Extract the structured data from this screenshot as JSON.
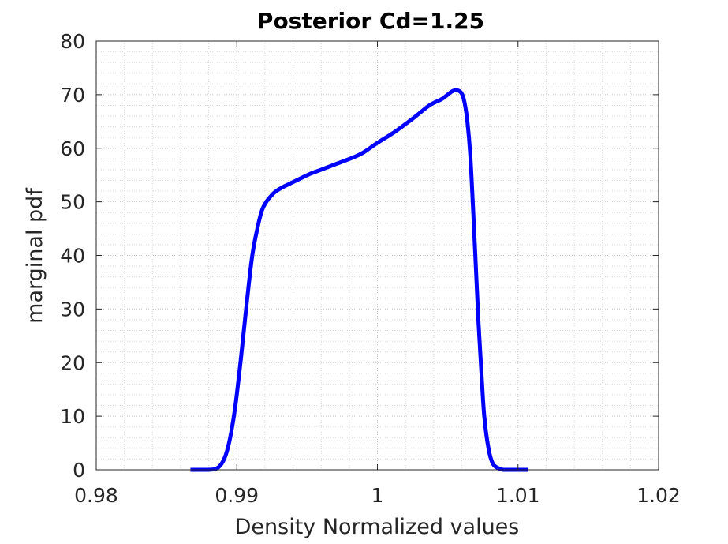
{
  "chart_data": {
    "type": "line",
    "title": "Posterior Cd=1.25",
    "xlabel": "Density Normalized values",
    "ylabel": "marginal pdf",
    "xlim": [
      0.98,
      1.02
    ],
    "ylim": [
      0,
      80
    ],
    "x_ticks": [
      0.98,
      0.99,
      1,
      1.01,
      1.02
    ],
    "x_tick_labels": [
      "0.98",
      "0.99",
      "1",
      "1.01",
      "1.02"
    ],
    "y_ticks": [
      0,
      10,
      20,
      30,
      40,
      50,
      60,
      70,
      80
    ],
    "y_tick_labels": [
      "0",
      "10",
      "20",
      "30",
      "40",
      "50",
      "60",
      "70",
      "80"
    ],
    "grid": true,
    "minor_grid": true,
    "line_color": "#0000ff",
    "series": [
      {
        "x": [
          0.9867,
          0.988,
          0.9886,
          0.989,
          0.9893,
          0.9896,
          0.9899,
          0.9903,
          0.9907,
          0.9911,
          0.9915,
          0.9918,
          0.9921,
          0.9924,
          0.9927,
          0.9931,
          0.9937,
          0.9944,
          0.9952,
          0.996,
          0.997,
          0.9982,
          0.999,
          1.0,
          1.0012,
          1.0025,
          1.0037,
          1.0046,
          1.0053,
          1.0057,
          1.006,
          1.0062,
          1.0064,
          1.0066,
          1.0068,
          1.007,
          1.0072,
          1.0074,
          1.0076,
          1.0079,
          1.0082,
          1.0086,
          1.009,
          1.01,
          1.0107
        ],
        "y": [
          0,
          0,
          0.3,
          1.5,
          3.5,
          7,
          12,
          21,
          31,
          40,
          45.5,
          48.5,
          50,
          51,
          51.8,
          52.5,
          53.3,
          54.2,
          55.2,
          56,
          57,
          58.2,
          59.2,
          61,
          63,
          65.5,
          68,
          69.2,
          70.6,
          70.8,
          70.2,
          68.5,
          65,
          59,
          49,
          38,
          27,
          18,
          10,
          4,
          1.2,
          0.3,
          0,
          0,
          0
        ]
      }
    ]
  }
}
